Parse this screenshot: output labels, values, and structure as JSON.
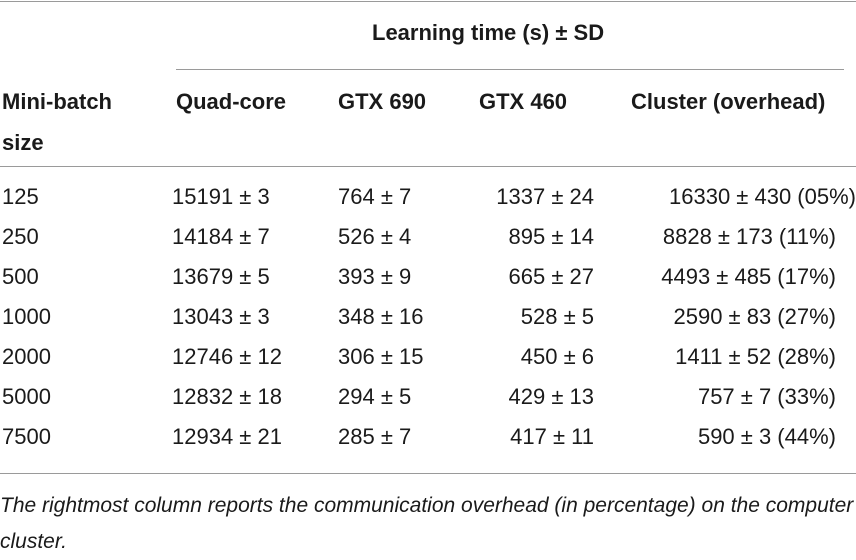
{
  "table": {
    "group_header": "Learning time (s) ± SD",
    "col_headers": {
      "mini_batch_line1": "Mini-batch",
      "mini_batch_line2": "size",
      "quad_core": "Quad-core",
      "gtx690": "GTX 690",
      "gtx460": "GTX 460",
      "cluster": "Cluster (overhead)"
    },
    "rows": [
      {
        "size": "125",
        "quad": "15191 ± 3",
        "gtx690": "764 ± 7",
        "gtx460": "1337 ± 24",
        "cluster": "16330 ± 430 (05%)"
      },
      {
        "size": "250",
        "quad": "14184 ± 7",
        "gtx690": "526 ± 4",
        "gtx460": "895 ± 14",
        "cluster": "8828 ± 173 (11%)"
      },
      {
        "size": "500",
        "quad": "13679 ± 5",
        "gtx690": "393 ± 9",
        "gtx460": "665 ± 27",
        "cluster": "4493 ± 485 (17%)"
      },
      {
        "size": "1000",
        "quad": "13043 ± 3",
        "gtx690": "348 ± 16",
        "gtx460": "528 ± 5",
        "cluster": "2590 ± 83 (27%)"
      },
      {
        "size": "2000",
        "quad": "12746 ± 12",
        "gtx690": "306 ± 15",
        "gtx460": "450 ± 6",
        "cluster": "1411 ± 52 (28%)"
      },
      {
        "size": "5000",
        "quad": "12832 ± 18",
        "gtx690": "294 ± 5",
        "gtx460": "429 ± 13",
        "cluster": "757 ± 7 (33%)"
      },
      {
        "size": "7500",
        "quad": "12934 ± 21",
        "gtx690": "285 ± 7",
        "gtx460": "417 ± 11",
        "cluster": "590 ± 3 (44%)"
      }
    ]
  },
  "caption": "The rightmost column reports the communication overhead (in percentage) on the computer cluster."
}
